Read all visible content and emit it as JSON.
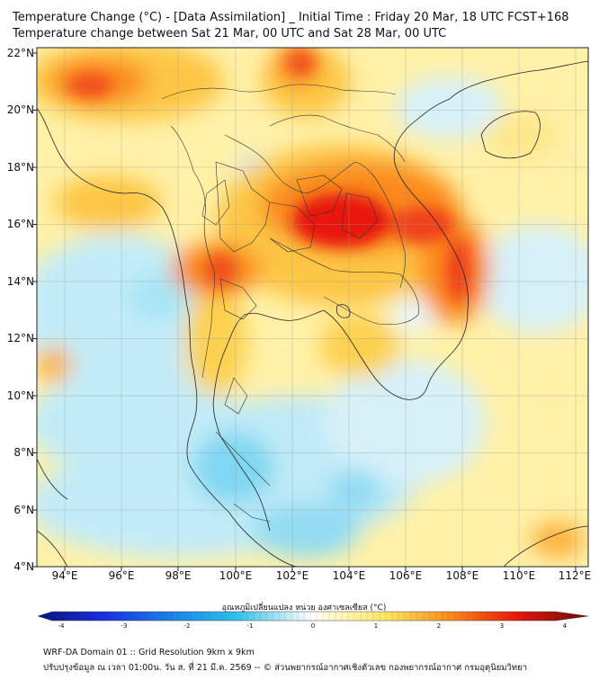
{
  "title": "Temperature Change (°C) - [Data Assimilation] _ Initial Time : Friday 20 Mar, 18 UTC FCST+168",
  "subtitle": "Temperature change between Sat 21 Mar, 00 UTC and Sat 28 Mar, 00 UTC",
  "lat_labels": [
    "22°N",
    "20°N",
    "18°N",
    "16°N",
    "14°N",
    "12°N",
    "10°N",
    "8°N",
    "6°N",
    "4°N"
  ],
  "lon_labels": [
    "94°E",
    "96°E",
    "98°E",
    "100°E",
    "102°E",
    "104°E",
    "106°E",
    "108°E",
    "110°E",
    "112°E"
  ],
  "colorbar": {
    "title": "อุณหภูมิเปลี่ยนแปลง หน่วย องศาเซลเซียส (°C)",
    "ticks": [
      "-4",
      "-3",
      "-2",
      "-1",
      "0",
      "1",
      "2",
      "3",
      "4"
    ],
    "min": -4,
    "max": 4
  },
  "footer": {
    "line1": "WRF-DA Domain 01 :: Grid Resolution 9km x 9km",
    "line2": "ปรับปรุงข้อมูล ณ เวลา 01:00น. วัน ส. ที่ 21 มี.ค. 2569 -- © ส่วนพยากรณ์อากาศเชิงตัวเลข กองพยากรณ์อากาศ กรมอุตุนิยมวิทยา"
  },
  "colors": {
    "strong_warm": "#e8160c",
    "warm": "#fb8a1a",
    "mild_warm": "#fde35a",
    "neutral": "#ffffff",
    "cool": "#a9e6f7",
    "cold": "#2fc0ec",
    "deep_cold": "#0a1aa8"
  }
}
